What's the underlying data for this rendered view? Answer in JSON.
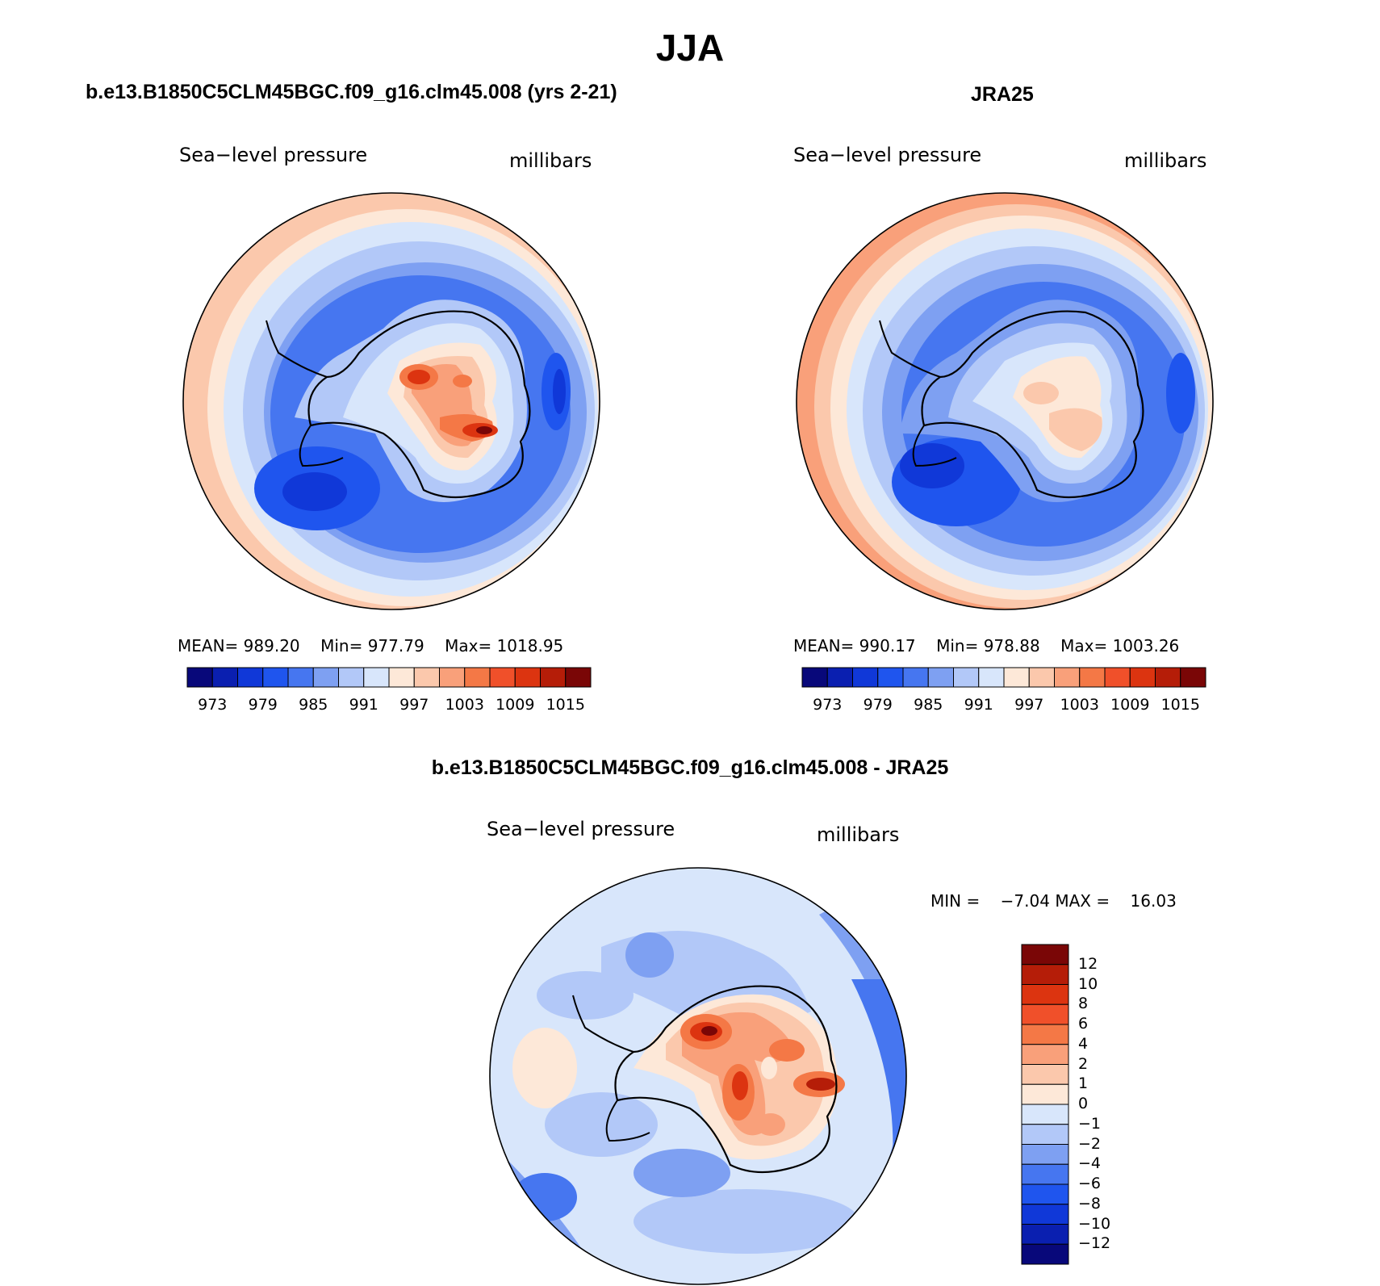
{
  "title": "JJA",
  "colors": {
    "abs": [
      "#08087a",
      "#0a1fb0",
      "#1038d8",
      "#1f55ee",
      "#4676f0",
      "#7ea0f2",
      "#b2c8f8",
      "#d8e6fb",
      "#fde8d8",
      "#fbc8ac",
      "#f9a07a",
      "#f47846",
      "#f0502a",
      "#dc3410",
      "#b51d08",
      "#7a0606"
    ],
    "diff": [
      "#08087a",
      "#0a1fb0",
      "#1038d8",
      "#1f55ee",
      "#4676f0",
      "#7ea0f2",
      "#b2c8f8",
      "#d8e6fb",
      "#fde8d8",
      "#fbc8ac",
      "#f9a07a",
      "#f47846",
      "#f0502a",
      "#dc3410",
      "#b51d08",
      "#7a0606"
    ]
  },
  "panels": [
    {
      "id": "model",
      "title": "b.e13.B1850C5CLM45BGC.f09_g16.clm45.008 (yrs 2-21)",
      "field": "Sea−level pressure",
      "units": "millibars",
      "stats": {
        "mean_label": "MEAN=",
        "mean": "989.20",
        "min_label": "Min=",
        "min": "977.79",
        "max_label": "Max=",
        "max": "1018.95"
      },
      "colorbar_labels": [
        "973",
        "979",
        "985",
        "991",
        "997",
        "1003",
        "1009",
        "1015"
      ]
    },
    {
      "id": "obs",
      "title": "JRA25",
      "field": "Sea−level pressure",
      "units": "millibars",
      "stats": {
        "mean_label": "MEAN=",
        "mean": "990.17",
        "min_label": "Min=",
        "min": "978.88",
        "max_label": "Max=",
        "max": "1003.26"
      },
      "colorbar_labels": [
        "973",
        "979",
        "985",
        "991",
        "997",
        "1003",
        "1009",
        "1015"
      ]
    },
    {
      "id": "diff",
      "title": "b.e13.B1850C5CLM45BGC.f09_g16.clm45.008 - JRA25",
      "field": "Sea−level pressure",
      "units": "millibars",
      "stats": {
        "min_label": "MIN =",
        "min": "−7.04",
        "max_label": "MAX =",
        "max": "16.03"
      },
      "colorbar_labels": [
        "12",
        "10",
        "8",
        "6",
        "4",
        "2",
        "1",
        "0",
        "−1",
        "−2",
        "−4",
        "−6",
        "−8",
        "−10",
        "−12"
      ]
    }
  ]
}
